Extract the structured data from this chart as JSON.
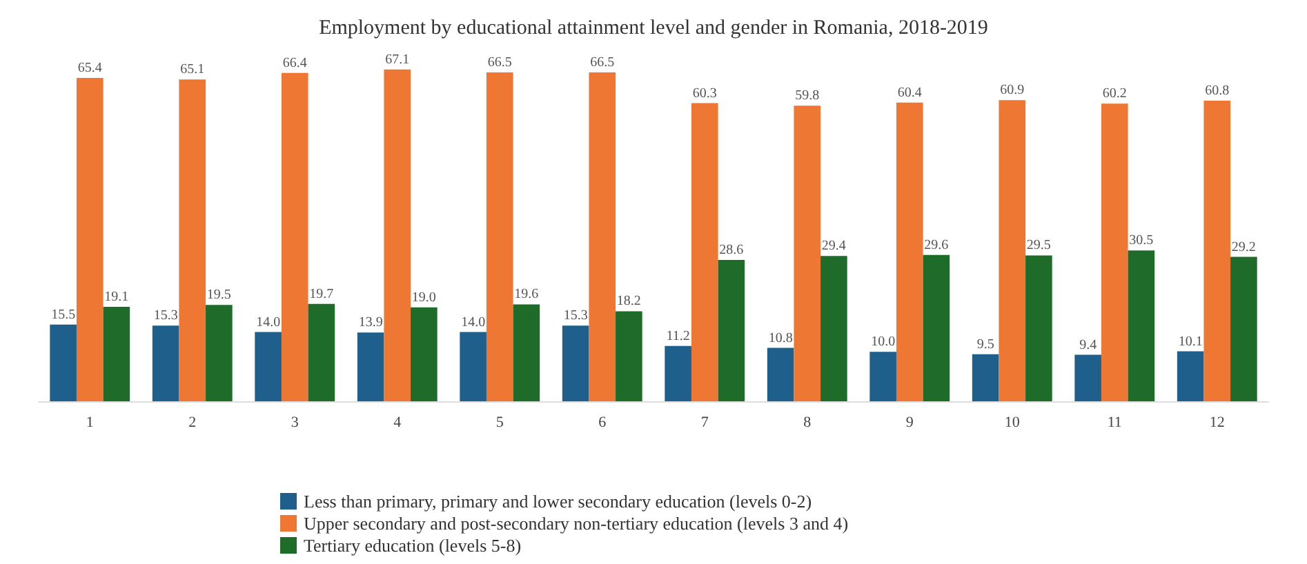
{
  "chart_data": {
    "type": "bar",
    "title": "Employment by educational attainment level and gender in Romania, 2018-2019",
    "categories": [
      "1",
      "2",
      "3",
      "4",
      "5",
      "6",
      "7",
      "8",
      "9",
      "10",
      "11",
      "12"
    ],
    "series": [
      {
        "name": "Less than primary, primary and lower secondary education (levels 0-2)",
        "color": "#1f5f8b",
        "values": [
          15.5,
          15.3,
          14.0,
          13.9,
          14.0,
          15.3,
          11.2,
          10.8,
          10.0,
          9.5,
          9.4,
          10.1
        ],
        "value_labels": [
          "15.5",
          "15.3",
          "14.0",
          "13.9",
          "14.0",
          "15.3",
          "11.2",
          "10.8",
          "10.0",
          "9.5",
          "9.4",
          "10.1"
        ]
      },
      {
        "name": "Upper secondary and post-secondary non-tertiary education (levels 3 and 4)",
        "color": "#ee7733",
        "values": [
          65.4,
          65.1,
          66.4,
          67.1,
          66.5,
          66.5,
          60.3,
          59.8,
          60.4,
          60.9,
          60.2,
          60.8
        ],
        "value_labels": [
          "65.4",
          "65.1",
          "66.4",
          "67.1",
          "66.5",
          "66.5",
          "60.3",
          "59.8",
          "60.4",
          "60.9",
          "60.2",
          "60.8"
        ]
      },
      {
        "name": "Tertiary education (levels 5-8)",
        "color": "#1e6b2a",
        "values": [
          19.1,
          19.5,
          19.7,
          19.0,
          19.6,
          18.2,
          28.6,
          29.4,
          29.6,
          29.5,
          30.5,
          29.2
        ],
        "value_labels": [
          "19.1",
          "19.5",
          "19.7",
          "19.0",
          "19.6",
          "18.2",
          "28.6",
          "29.4",
          "29.6",
          "29.5",
          "30.5",
          "29.2"
        ]
      }
    ],
    "grid": false,
    "legend": "bottom",
    "tick_labels": "x"
  }
}
